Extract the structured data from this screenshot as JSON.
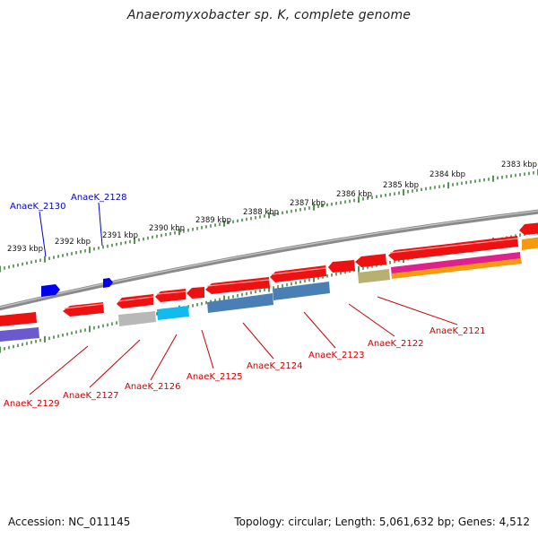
{
  "title": "Anaeromyxobacter sp. K, complete genome",
  "footer": {
    "accession": "Accession: NC_011145",
    "topology": "Topology: circular; Length: 5,061,632 bp; Genes: 4,512"
  },
  "colors": {
    "backbone": "#808080",
    "tick": "#2a7a2a",
    "red_gene": "#ee1111",
    "blue_gene": "#0000ee",
    "steel_gene": "#4a7fb5",
    "cyan_gene": "#11bbee",
    "gray_gene": "#b0b0b0",
    "purple_gene": "#6a5acd",
    "olive_gene": "#b8b070",
    "magenta_gene": "#e0208c",
    "orange_gene": "#f59a10",
    "blue_label": "#0000cc",
    "red_label": "#cc0000"
  },
  "diagram": {
    "scale_labels": [
      "2383 kbp",
      "2384 kbp",
      "2385 kbp",
      "2386 kbp",
      "2387 kbp",
      "2388 kbp",
      "2389 kbp",
      "2390 kbp",
      "2391 kbp",
      "2392 kbp",
      "2393 kbp"
    ],
    "gene_labels_top": [
      "AnaeK_2130",
      "AnaeK_2128"
    ],
    "gene_labels_bottom": [
      "AnaeK_2129",
      "AnaeK_2127",
      "AnaeK_2126",
      "AnaeK_2125",
      "AnaeK_2124",
      "AnaeK_2123",
      "AnaeK_2122",
      "AnaeK_2121"
    ]
  }
}
